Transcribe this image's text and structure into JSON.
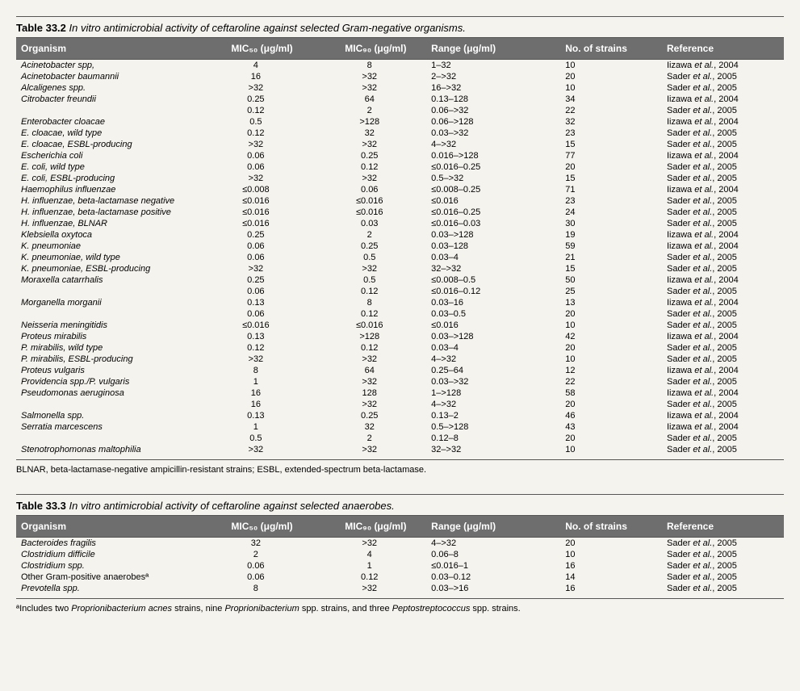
{
  "table1": {
    "number": "Table 33.2",
    "title": "In vitro antimicrobial activity of ceftaroline against selected Gram-negative organisms.",
    "columns": {
      "organism": "Organism",
      "mic50": "MIC₅₀ (μg/ml)",
      "mic90": "MIC₉₀ (μg/ml)",
      "range": "Range (μg/ml)",
      "strains": "No. of strains",
      "reference": "Reference"
    },
    "rows": [
      {
        "org": "Acinetobacter spp,",
        "orgItalic": true,
        "mic50": "4",
        "mic90": "8",
        "range": "1–32",
        "n": "10",
        "ref": "Iizawa et al., 2004"
      },
      {
        "org": "Acinetobacter baumannii",
        "orgItalic": true,
        "mic50": "16",
        "mic90": ">32",
        "range": "2–>32",
        "n": "20",
        "ref": "Sader et al., 2005"
      },
      {
        "org": "Alcaligenes spp.",
        "orgItalic": true,
        "mic50": ">32",
        "mic90": ">32",
        "range": "16–>32",
        "n": "10",
        "ref": "Sader et al., 2005"
      },
      {
        "org": "Citrobacter freundii",
        "orgItalic": true,
        "mic50": "0.25",
        "mic90": "64",
        "range": "0.13–128",
        "n": "34",
        "ref": "Iizawa et al., 2004"
      },
      {
        "org": "",
        "orgItalic": true,
        "mic50": "0.12",
        "mic90": "2",
        "range": "0.06–>32",
        "n": "22",
        "ref": "Sader et al., 2005"
      },
      {
        "org": "Enterobacter cloacae",
        "orgItalic": true,
        "mic50": "0.5",
        "mic90": ">128",
        "range": "0.06–>128",
        "n": "32",
        "ref": "Iizawa et al., 2004"
      },
      {
        "org": "E. cloacae, wild type",
        "orgItalic": true,
        "mic50": "0.12",
        "mic90": "32",
        "range": "0.03–>32",
        "n": "23",
        "ref": "Sader et al., 2005"
      },
      {
        "org": "E. cloacae, ESBL-producing",
        "orgItalic": true,
        "mic50": ">32",
        "mic90": ">32",
        "range": "4–>32",
        "n": "15",
        "ref": "Sader et al., 2005"
      },
      {
        "org": "Escherichia coli",
        "orgItalic": true,
        "mic50": "0.06",
        "mic90": "0.25",
        "range": "0.016–>128",
        "n": "77",
        "ref": "Iizawa et al., 2004"
      },
      {
        "org": "E. coli, wild type",
        "orgItalic": true,
        "mic50": "0.06",
        "mic90": "0.12",
        "range": "≤0.016–0.25",
        "n": "20",
        "ref": "Sader et al., 2005"
      },
      {
        "org": "E. coli, ESBL-producing",
        "orgItalic": true,
        "mic50": ">32",
        "mic90": ">32",
        "range": "0.5–>32",
        "n": "15",
        "ref": "Sader et al., 2005"
      },
      {
        "org": "Haemophilus influenzae",
        "orgItalic": true,
        "mic50": "≤0.008",
        "mic90": "0.06",
        "range": "≤0.008–0.25",
        "n": "71",
        "ref": "Iizawa et al., 2004"
      },
      {
        "org": "H. influenzae, beta-lactamase negative",
        "orgItalic": true,
        "mic50": "≤0.016",
        "mic90": "≤0.016",
        "range": "≤0.016",
        "n": "23",
        "ref": "Sader et al., 2005"
      },
      {
        "org": "H. influenzae, beta-lactamase positive",
        "orgItalic": true,
        "mic50": "≤0.016",
        "mic90": "≤0.016",
        "range": "≤0.016–0.25",
        "n": "24",
        "ref": "Sader et al., 2005"
      },
      {
        "org": "H. influenzae, BLNAR",
        "orgItalic": true,
        "mic50": "≤0.016",
        "mic90": "0.03",
        "range": "≤0.016–0.03",
        "n": "30",
        "ref": "Sader et al., 2005"
      },
      {
        "org": "Klebsiella oxytoca",
        "orgItalic": true,
        "mic50": "0.25",
        "mic90": "2",
        "range": "0.03–>128",
        "n": "19",
        "ref": "Iizawa et al., 2004"
      },
      {
        "org": "K. pneumoniae",
        "orgItalic": true,
        "mic50": "0.06",
        "mic90": "0.25",
        "range": "0.03–128",
        "n": "59",
        "ref": "Iizawa et al., 2004"
      },
      {
        "org": "K. pneumoniae, wild type",
        "orgItalic": true,
        "mic50": "0.06",
        "mic90": "0.5",
        "range": "0.03–4",
        "n": "21",
        "ref": "Sader et al., 2005"
      },
      {
        "org": "K. pneumoniae, ESBL-producing",
        "orgItalic": true,
        "mic50": ">32",
        "mic90": ">32",
        "range": "32–>32",
        "n": "15",
        "ref": "Sader et al., 2005"
      },
      {
        "org": "Moraxella catarrhalis",
        "orgItalic": true,
        "mic50": "0.25",
        "mic90": "0.5",
        "range": "≤0.008–0.5",
        "n": "50",
        "ref": "Iizawa et al., 2004"
      },
      {
        "org": "",
        "orgItalic": true,
        "mic50": "0.06",
        "mic90": "0.12",
        "range": "≤0.016–0.12",
        "n": "25",
        "ref": "Sader et al., 2005"
      },
      {
        "org": "Morganella morganii",
        "orgItalic": true,
        "mic50": "0.13",
        "mic90": "8",
        "range": "0.03–16",
        "n": "13",
        "ref": "Iizawa et al., 2004"
      },
      {
        "org": "",
        "orgItalic": true,
        "mic50": "0.06",
        "mic90": "0.12",
        "range": "0.03–0.5",
        "n": "20",
        "ref": "Sader et al., 2005"
      },
      {
        "org": "Neisseria meningitidis",
        "orgItalic": true,
        "mic50": "≤0.016",
        "mic90": "≤0.016",
        "range": "≤0.016",
        "n": "10",
        "ref": "Sader et al., 2005"
      },
      {
        "org": "Proteus mirabilis",
        "orgItalic": true,
        "mic50": "0.13",
        "mic90": ">128",
        "range": "0.03–>128",
        "n": "42",
        "ref": "Iizawa et al., 2004"
      },
      {
        "org": "P. mirabilis, wild type",
        "orgItalic": true,
        "mic50": "0.12",
        "mic90": "0.12",
        "range": "0.03–4",
        "n": "20",
        "ref": "Sader et al., 2005"
      },
      {
        "org": "P. mirabilis, ESBL-producing",
        "orgItalic": true,
        "mic50": ">32",
        "mic90": ">32",
        "range": "4–>32",
        "n": "10",
        "ref": "Sader et al., 2005"
      },
      {
        "org": "Proteus vulgaris",
        "orgItalic": true,
        "mic50": "8",
        "mic90": "64",
        "range": "0.25–64",
        "n": "12",
        "ref": "Iizawa et al., 2004"
      },
      {
        "org": "Providencia spp./P. vulgaris",
        "orgItalic": true,
        "mic50": "1",
        "mic90": ">32",
        "range": "0.03–>32",
        "n": "22",
        "ref": "Sader et al., 2005"
      },
      {
        "org": "Pseudomonas aeruginosa",
        "orgItalic": true,
        "mic50": "16",
        "mic90": "128",
        "range": "1–>128",
        "n": "58",
        "ref": "Iizawa et al., 2004"
      },
      {
        "org": "",
        "orgItalic": true,
        "mic50": "16",
        "mic90": ">32",
        "range": "4–>32",
        "n": "20",
        "ref": "Sader et al., 2005"
      },
      {
        "org": "Salmonella spp.",
        "orgItalic": true,
        "mic50": "0.13",
        "mic90": "0.25",
        "range": "0.13–2",
        "n": "46",
        "ref": "Iizawa et al., 2004"
      },
      {
        "org": "Serratia marcescens",
        "orgItalic": true,
        "mic50": "1",
        "mic90": "32",
        "range": "0.5–>128",
        "n": "43",
        "ref": "Iizawa et al., 2004"
      },
      {
        "org": "",
        "orgItalic": true,
        "mic50": "0.5",
        "mic90": "2",
        "range": "0.12–8",
        "n": "20",
        "ref": "Sader et al., 2005"
      },
      {
        "org": "Stenotrophomonas maltophilia",
        "orgItalic": true,
        "mic50": ">32",
        "mic90": ">32",
        "range": "32–>32",
        "n": "10",
        "ref": "Sader et al., 2005"
      }
    ],
    "footnote": "BLNAR, beta-lactamase-negative ampicillin-resistant strains; ESBL, extended-spectrum beta-lactamase."
  },
  "table2": {
    "number": "Table 33.3",
    "title": "In vitro antimicrobial activity of ceftaroline against selected anaerobes.",
    "columns": {
      "organism": "Organism",
      "mic50": "MIC₅₀ (μg/ml)",
      "mic90": "MIC₉₀ (μg/ml)",
      "range": "Range (μg/ml)",
      "strains": "No. of strains",
      "reference": "Reference"
    },
    "rows": [
      {
        "org": "Bacteroides fragilis",
        "orgItalic": true,
        "mic50": "32",
        "mic90": ">32",
        "range": "4–>32",
        "n": "20",
        "ref": "Sader et al., 2005"
      },
      {
        "org": "Clostridium difficile",
        "orgItalic": true,
        "mic50": "2",
        "mic90": "4",
        "range": "0.06–8",
        "n": "10",
        "ref": "Sader et al., 2005"
      },
      {
        "org": "Clostridium spp.",
        "orgItalic": true,
        "mic50": "0.06",
        "mic90": "1",
        "range": "≤0.016–1",
        "n": "16",
        "ref": "Sader et al., 2005"
      },
      {
        "org": "Other Gram-positive anaerobesª",
        "orgItalic": false,
        "mic50": "0.06",
        "mic90": "0.12",
        "range": "0.03–0.12",
        "n": "14",
        "ref": "Sader et al., 2005"
      },
      {
        "org": "Prevotella spp.",
        "orgItalic": true,
        "mic50": "8",
        "mic90": ">32",
        "range": "0.03–>16",
        "n": "16",
        "ref": "Sader et al., 2005"
      }
    ],
    "footnote_prefix": "ªIncludes two ",
    "footnote_i1": "Proprionibacterium acnes",
    "footnote_mid1": " strains, nine ",
    "footnote_i2": "Proprionibacterium",
    "footnote_mid2": " spp. strains, and three ",
    "footnote_i3": "Peptostreptococcus",
    "footnote_suffix": " spp. strains."
  }
}
